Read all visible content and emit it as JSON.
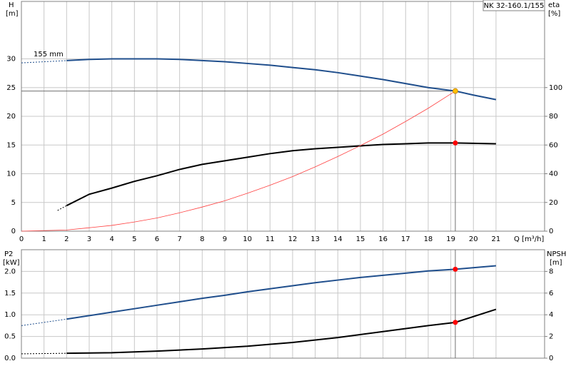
{
  "chart_data": [
    {
      "type": "line",
      "title": "NK 32-160.1/155",
      "annotation": "155 mm",
      "ylabel": "H",
      "yunit": "[m]",
      "y2label": "eta",
      "y2unit": "[%]",
      "xlabel": "Q [m³/h]",
      "xlim": [
        0,
        23.15
      ],
      "xticks": [
        0,
        1,
        2,
        3,
        4,
        5,
        6,
        7,
        8,
        9,
        10,
        11,
        12,
        13,
        14,
        15,
        16,
        17,
        18,
        19,
        20,
        21
      ],
      "ylim": [
        0,
        40
      ],
      "yticks": [
        0,
        5,
        10,
        15,
        20,
        25,
        30
      ],
      "y2lim": [
        0,
        160
      ],
      "y2ticks": [
        0,
        20,
        40,
        60,
        80,
        100
      ],
      "grid": true,
      "vline": 19.2,
      "hline": 24.4,
      "series": [
        {
          "color": "#1f4e8c",
          "dash": true,
          "x": [
            0,
            2
          ],
          "values": [
            29.3,
            29.7
          ]
        },
        {
          "color": "#1f4e8c",
          "x": [
            2,
            3,
            4,
            5,
            6,
            7,
            8,
            9,
            10,
            11,
            12,
            13,
            14,
            15,
            16,
            17,
            18,
            19.2,
            20,
            21
          ],
          "values": [
            29.7,
            29.9,
            30.0,
            30.0,
            30.0,
            29.9,
            29.7,
            29.5,
            29.2,
            28.9,
            28.5,
            28.1,
            27.6,
            27.0,
            26.4,
            25.7,
            25.0,
            24.4,
            23.7,
            22.9
          ]
        },
        {
          "color": "#000000",
          "dash": true,
          "axis": "y2",
          "x": [
            1.6,
            2
          ],
          "values": [
            14.4,
            17.8
          ]
        },
        {
          "color": "#000000",
          "axis": "y2",
          "x": [
            2,
            3,
            4,
            5,
            6,
            7,
            8,
            9,
            10,
            11,
            12,
            13,
            14,
            15,
            16,
            17,
            18,
            19.2,
            21
          ],
          "values": [
            17.8,
            25.7,
            30,
            34.7,
            38.6,
            43,
            46.5,
            49,
            51.5,
            54,
            56,
            57.4,
            58.4,
            59.4,
            60.4,
            60.9,
            61.4,
            61.4,
            60.9
          ]
        },
        {
          "color": "#ff4040",
          "width": 0.8,
          "x": [
            0,
            2,
            3,
            4,
            5,
            6,
            7,
            8,
            9,
            10,
            11,
            12,
            13,
            14,
            15,
            16,
            17,
            18,
            19.2
          ],
          "values": [
            0,
            0.2,
            0.6,
            1.0,
            1.6,
            2.3,
            3.2,
            4.2,
            5.3,
            6.6,
            8.0,
            9.5,
            11.2,
            13.0,
            14.9,
            16.9,
            19.1,
            21.4,
            24.4
          ]
        }
      ],
      "markers": [
        {
          "x": 19.2,
          "y": 24.4,
          "color": "#ffc000"
        },
        {
          "x": 19.2,
          "y": 61.4,
          "axis": "y2",
          "color": "#ff0000"
        }
      ]
    },
    {
      "type": "line",
      "ylabel": "P2",
      "yunit": "[kW]",
      "y2label": "NPSH",
      "y2unit": "[m]",
      "xlim": [
        0,
        23.15
      ],
      "xticks": [
        0,
        1,
        2,
        3,
        4,
        5,
        6,
        7,
        8,
        9,
        10,
        11,
        12,
        13,
        14,
        15,
        16,
        17,
        18,
        19,
        20,
        21
      ],
      "ylim": [
        0,
        2.5
      ],
      "yticks": [
        {
          "value": 0,
          "label": "0.0"
        },
        0.5,
        {
          "value": 1,
          "label": "1.0"
        },
        1.5,
        {
          "value": 2,
          "label": "2.0"
        }
      ],
      "y2lim": [
        0,
        10
      ],
      "y2ticks": [
        0,
        2,
        4,
        6,
        8
      ],
      "grid": true,
      "vline": 19.2,
      "series": [
        {
          "color": "#1f4e8c",
          "dash": true,
          "x": [
            0,
            2
          ],
          "values": [
            0.75,
            0.9
          ]
        },
        {
          "color": "#1f4e8c",
          "x": [
            2,
            3,
            4,
            5,
            6,
            7,
            8,
            9,
            10,
            11,
            12,
            13,
            14,
            15,
            16,
            17,
            18,
            19.2,
            21
          ],
          "values": [
            0.9,
            0.98,
            1.06,
            1.14,
            1.22,
            1.3,
            1.38,
            1.45,
            1.53,
            1.6,
            1.67,
            1.74,
            1.8,
            1.86,
            1.91,
            1.96,
            2.01,
            2.05,
            2.13
          ]
        },
        {
          "color": "#000000",
          "dash": true,
          "axis": "y2",
          "x": [
            0,
            2
          ],
          "values": [
            0.4,
            0.45
          ]
        },
        {
          "color": "#000000",
          "axis": "y2",
          "x": [
            2,
            4,
            6,
            8,
            10,
            12,
            14,
            16,
            18,
            19.2,
            21
          ],
          "values": [
            0.45,
            0.5,
            0.65,
            0.85,
            1.1,
            1.45,
            1.9,
            2.45,
            3.0,
            3.3,
            4.5
          ]
        }
      ],
      "markers": [
        {
          "x": 19.2,
          "y": 2.05,
          "color": "#ff0000"
        },
        {
          "x": 19.2,
          "y": 3.3,
          "axis": "y2",
          "color": "#ff0000"
        }
      ]
    }
  ]
}
